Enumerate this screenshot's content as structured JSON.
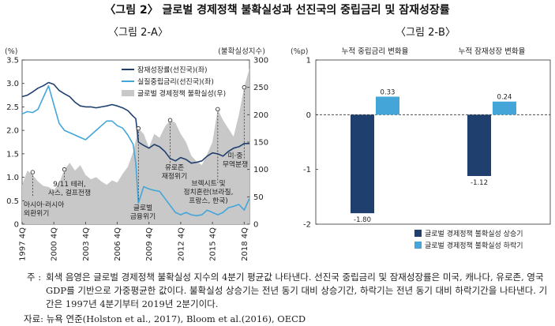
{
  "figure_title": "〈그림 2〉 글로벌 경제정책 불확실성과 선진국의 중립금리 및 잠재성장률",
  "chart_data": [
    {
      "type": "line",
      "title": "〈그림 2-A〉",
      "left_unit": "(%)",
      "right_unit": "(불확실성지수)",
      "ylim_left": [
        0,
        3.5
      ],
      "yticks_left": [
        "0",
        "0.5",
        "1.0",
        "1.5",
        "2.0",
        "2.5",
        "3.0",
        "3.5"
      ],
      "ylim_right": [
        0,
        300
      ],
      "yticks_right": [
        "0",
        "50",
        "100",
        "150",
        "200",
        "250",
        "300"
      ],
      "xticks": [
        "1997 4Q",
        "2000 4Q",
        "2003 4Q",
        "2006 4Q",
        "2009 4Q",
        "2012 4Q",
        "2015 4Q",
        "2018 4Q"
      ],
      "x_start": 1997.75,
      "x_end": 2019.25,
      "grid": false,
      "legend_position": "top-right",
      "colors": {
        "potential": "#1f3f6e",
        "neutral": "#44a6d8",
        "uncertainty": "#c8c8c8"
      },
      "series": [
        {
          "name": "잠재성장률(선진국)(좌)",
          "axis": "left",
          "x": [
            1997.75,
            1998.25,
            1998.75,
            1999.25,
            1999.75,
            2000.25,
            2000.75,
            2001.25,
            2001.75,
            2002.25,
            2002.75,
            2003.25,
            2003.75,
            2004.25,
            2004.75,
            2005.25,
            2005.75,
            2006.25,
            2006.75,
            2007.25,
            2007.75,
            2008.25,
            2008.5,
            2008.75,
            2009.25,
            2009.75,
            2010.25,
            2010.75,
            2011.25,
            2011.75,
            2012.25,
            2012.75,
            2013.25,
            2013.75,
            2014.25,
            2014.75,
            2015.25,
            2015.75,
            2016.25,
            2016.75,
            2017.25,
            2017.75,
            2018.25,
            2018.75,
            2019.25
          ],
          "values": [
            2.72,
            2.75,
            2.82,
            2.9,
            2.95,
            3.02,
            2.98,
            2.85,
            2.78,
            2.72,
            2.6,
            2.52,
            2.5,
            2.5,
            2.48,
            2.5,
            2.52,
            2.55,
            2.52,
            2.48,
            2.42,
            2.3,
            2.25,
            1.75,
            1.68,
            1.62,
            1.7,
            1.65,
            1.55,
            1.4,
            1.35,
            1.42,
            1.38,
            1.3,
            1.32,
            1.35,
            1.45,
            1.52,
            1.5,
            1.45,
            1.55,
            1.62,
            1.65,
            1.72,
            1.72
          ]
        },
        {
          "name": "실질중립금리(선진국)(좌)",
          "axis": "left",
          "x": [
            1997.75,
            1998.25,
            1998.75,
            1999.25,
            1999.75,
            2000.25,
            2000.75,
            2001.25,
            2001.75,
            2002.25,
            2002.75,
            2003.25,
            2003.75,
            2004.25,
            2004.75,
            2005.25,
            2005.75,
            2006.25,
            2006.75,
            2007.25,
            2007.75,
            2008.25,
            2008.5,
            2008.75,
            2009.25,
            2009.75,
            2010.25,
            2010.75,
            2011.25,
            2011.75,
            2012.25,
            2012.75,
            2013.25,
            2013.75,
            2014.25,
            2014.75,
            2015.25,
            2015.75,
            2016.25,
            2016.75,
            2017.25,
            2017.75,
            2018.25,
            2018.75,
            2019.25
          ],
          "values": [
            2.35,
            2.4,
            2.38,
            2.45,
            2.7,
            2.95,
            2.55,
            2.15,
            2.0,
            1.95,
            1.9,
            1.85,
            1.8,
            1.9,
            2.0,
            2.1,
            2.2,
            2.2,
            2.1,
            2.05,
            1.9,
            1.7,
            1.3,
            0.45,
            0.8,
            0.75,
            0.72,
            0.7,
            0.55,
            0.4,
            0.25,
            0.2,
            0.25,
            0.2,
            0.18,
            0.2,
            0.3,
            0.25,
            0.2,
            0.25,
            0.35,
            0.38,
            0.42,
            0.3,
            0.55
          ]
        },
        {
          "name": "글로벌 경제정책 불확실성(우)",
          "axis": "right",
          "style": "area",
          "x": [
            1997.75,
            1998.25,
            1998.75,
            1999.25,
            1999.75,
            2000.25,
            2000.75,
            2001.25,
            2001.75,
            2002.25,
            2002.75,
            2003.25,
            2003.75,
            2004.25,
            2004.75,
            2005.25,
            2005.75,
            2006.25,
            2006.75,
            2007.25,
            2007.75,
            2008.25,
            2008.75,
            2009.25,
            2009.75,
            2010.25,
            2010.75,
            2011.25,
            2011.75,
            2012.25,
            2012.75,
            2013.25,
            2013.75,
            2014.25,
            2014.75,
            2015.25,
            2015.75,
            2016.25,
            2016.75,
            2017.25,
            2017.75,
            2018.25,
            2018.75,
            2019.25
          ],
          "values": [
            72,
            98,
            90,
            78,
            70,
            68,
            62,
            75,
            100,
            112,
            98,
            108,
            90,
            82,
            86,
            78,
            72,
            80,
            76,
            92,
            105,
            132,
            175,
            165,
            140,
            165,
            158,
            178,
            190,
            185,
            165,
            150,
            125,
            115,
            108,
            128,
            150,
            210,
            190,
            175,
            160,
            200,
            250,
            285
          ]
        }
      ],
      "annotations": [
        "아시아·러시아 외환위기",
        "9/11 테러, 사스, 걸프전쟁",
        "글로벌 금융위기",
        "유로존 재정위기",
        "브렉시트 및 정치혼란(브라질, 프랑스, 한국)",
        "미·중 무역분쟁"
      ]
    },
    {
      "type": "bar",
      "title": "〈그림 2-B〉",
      "unit": "(%p)",
      "ylim": [
        -2,
        1
      ],
      "yticks": [
        "1",
        "0",
        "-1",
        "-2"
      ],
      "grid": false,
      "legend_position": "bottom-right",
      "categories": [
        "누적 중립금리 변화율",
        "누적 잠재성장 변화율"
      ],
      "series": [
        {
          "name": "글로벌 경제정책 불확실성 상승기",
          "color": "#1f3f6e",
          "values": [
            -1.8,
            -1.12
          ],
          "labels": [
            "-1.80",
            "-1.12"
          ]
        },
        {
          "name": "글로벌 경제정책 불확실성 하락기",
          "color": "#44a6d8",
          "values": [
            0.33,
            0.24
          ],
          "labels": [
            "0.33",
            "0.24"
          ]
        }
      ]
    }
  ],
  "note_label": "주 :",
  "note_text": "회색 음영은 글로벌 경제정책 불확실성 지수의 4분기 평균값 나타낸다. 선진국 중립금리 및 잠재성장률은 미국, 캐나다, 유로존, 영국 GDP를 기반으로 가중평균한 값이다. 불확실성 상승기는 전년 동기 대비 상승기간, 하락기는 전년 동기 대비 하락기간을 나타낸다. 기간은 1997년 4분기부터 2019년 2분기이다.",
  "source_text": "자료: 뉴욕 연준(Holston et al., 2017), Bloom et al.(2016), OECD"
}
